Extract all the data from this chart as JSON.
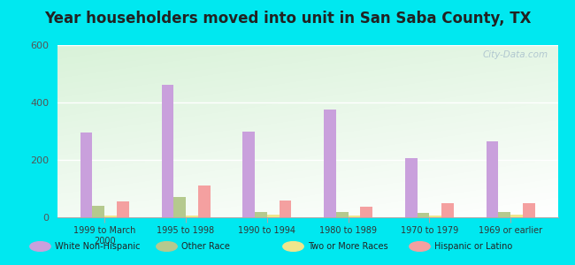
{
  "title": "Year householders moved into unit in San Saba County, TX",
  "categories": [
    "1999 to March\n2000",
    "1995 to 1998",
    "1990 to 1994",
    "1980 to 1989",
    "1970 to 1979",
    "1969 or earlier"
  ],
  "series": {
    "White Non-Hispanic": [
      295,
      460,
      300,
      375,
      205,
      265
    ],
    "Other Race": [
      40,
      70,
      20,
      20,
      15,
      20
    ],
    "Two or More Races": [
      5,
      5,
      8,
      5,
      5,
      8
    ],
    "Hispanic or Latino": [
      55,
      110,
      58,
      38,
      48,
      50
    ]
  },
  "colors": {
    "White Non-Hispanic": "#c9a0dc",
    "Other Race": "#b5c98e",
    "Two or More Races": "#f0e68c",
    "Hispanic or Latino": "#f4a0a0"
  },
  "ylim": [
    0,
    600
  ],
  "yticks": [
    0,
    200,
    400,
    600
  ],
  "outer_background": "#00e8f0",
  "bar_width": 0.15,
  "title_fontsize": 12,
  "watermark": "City-Data.com"
}
